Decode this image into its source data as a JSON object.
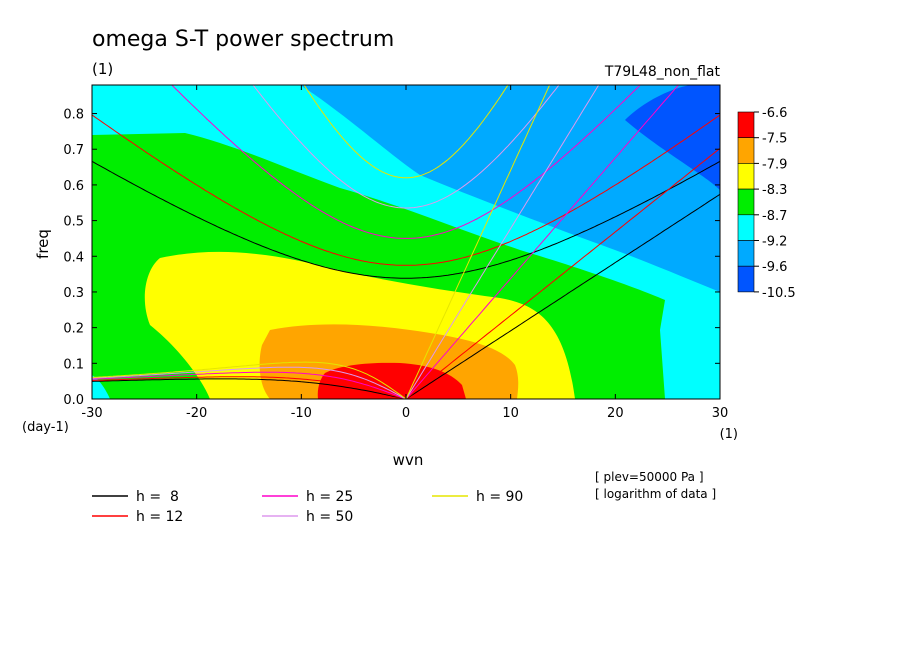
{
  "chart_data": {
    "type": "heatmap",
    "title": "omega S-T power spectrum",
    "units_label": "(1)",
    "run_label": "T79L48_non_flat",
    "xlabel": "wvn",
    "ylabel": "freq",
    "x_unit": "(1)",
    "y_unit": "(day-1)",
    "xlim": [
      -30,
      30
    ],
    "ylim": [
      0,
      0.88
    ],
    "x_ticks": [
      -30,
      -20,
      -10,
      0,
      10,
      20,
      30
    ],
    "x_tick_labels": [
      "-30",
      "-20",
      "-10",
      "0",
      "10",
      "20",
      "30"
    ],
    "y_ticks": [
      0.0,
      0.1,
      0.2,
      0.3,
      0.4,
      0.5,
      0.6,
      0.7,
      0.8
    ],
    "y_tick_labels": [
      "0.0",
      "0.1",
      "0.2",
      "0.3",
      "0.4",
      "0.5",
      "0.6",
      "0.7",
      "0.8"
    ],
    "colorbar": {
      "levels": [
        "-6.6",
        "-7.5",
        "-7.9",
        "-8.3",
        "-8.7",
        "-9.2",
        "-9.6",
        "-10.5"
      ],
      "colors": [
        "#ff0000",
        "#ffa500",
        "#ffff00",
        "#00ee00",
        "#00ffff",
        "#00aaff",
        "#0055ff"
      ]
    },
    "dispersion_curves": [
      {
        "name": "h =  8",
        "h": 8,
        "color": "#000000"
      },
      {
        "name": "h = 12",
        "h": 12,
        "color": "#ff0000"
      },
      {
        "name": "h = 25",
        "h": 25,
        "color": "#ff00cc"
      },
      {
        "name": "h = 50",
        "h": 50,
        "color": "#dd99ee"
      },
      {
        "name": "h = 90",
        "h": 90,
        "color": "#e6e600"
      }
    ],
    "notes": [
      "[ plev=50000 Pa ]",
      "[ logarithm of data ]"
    ]
  }
}
